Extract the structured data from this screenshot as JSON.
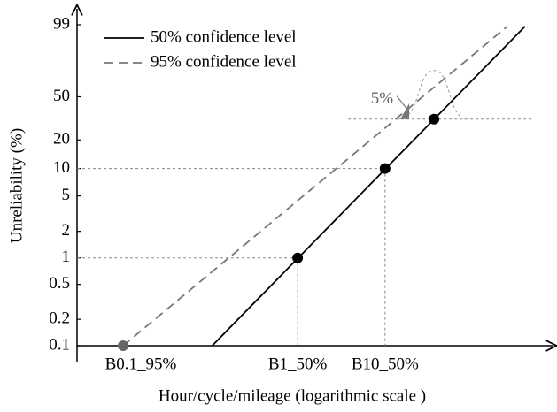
{
  "chart_data": {
    "type": "line",
    "x_label": "Hour/cycle/mileage (logarithmic scale )",
    "y_label": "Unreliability (%)",
    "xscale": "log",
    "yscale": "weibull",
    "xlim": [
      1,
      1000
    ],
    "ylim": [
      0.1,
      99
    ],
    "yticks": [
      0.1,
      0.2,
      0.5,
      1,
      2,
      5,
      10,
      20,
      50,
      99
    ],
    "legend": "upper-left",
    "series": [
      {
        "name": "50% confidence level",
        "color": "#000000",
        "dash": "solid",
        "x": [
          7.1,
          663
        ],
        "values": [
          0.1,
          98.8
        ]
      },
      {
        "name": "95% confidence level",
        "color": "#777777",
        "dash": "dashed",
        "x": [
          1.95,
          513
        ],
        "values": [
          0.1,
          98.8
        ]
      }
    ],
    "points": [
      {
        "label": "B0.1_95%",
        "x": 1.95,
        "value": 0.1,
        "color": "#666666"
      },
      {
        "label": "B1_50%",
        "x": 24.5,
        "value": 1,
        "color": "#000000"
      },
      {
        "label": "B10_50%",
        "x": 87,
        "value": 10,
        "color": "#000000"
      },
      {
        "label": null,
        "x": 177,
        "value": 32,
        "color": "#000000"
      }
    ],
    "annotation": {
      "text": "5%"
    }
  }
}
